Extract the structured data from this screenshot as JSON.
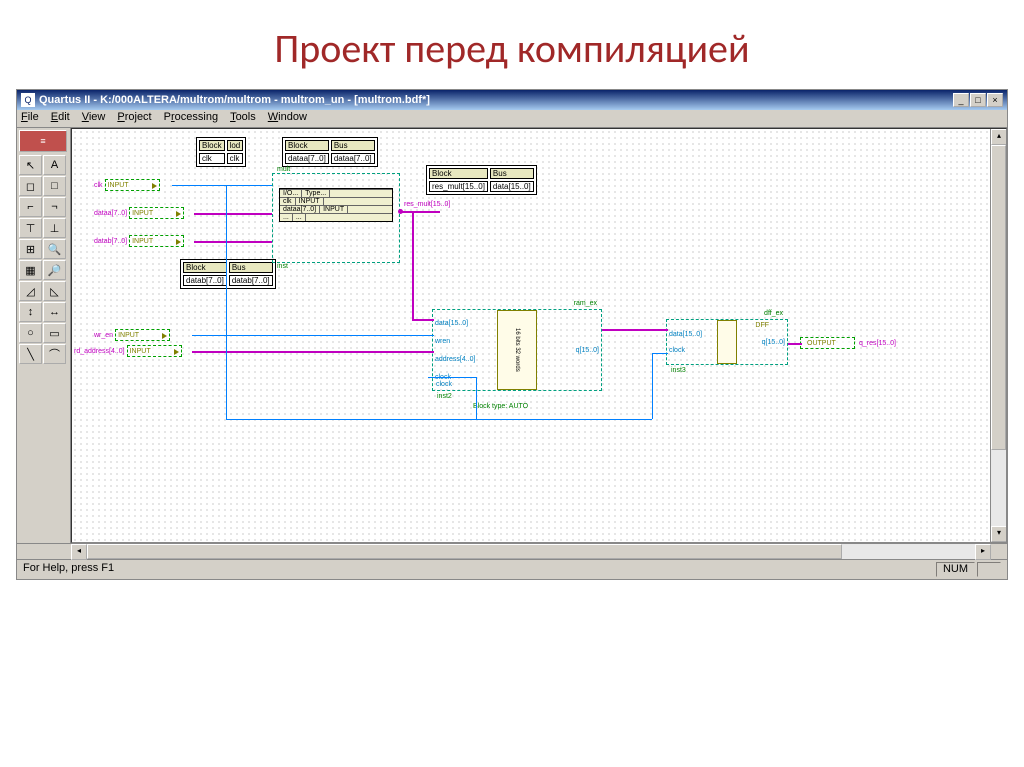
{
  "slide": {
    "title": "Проект перед компиляцией"
  },
  "titlebar": {
    "icon": "Q",
    "text": "Quartus II - K:/000ALTERA/multrom/multrom - multrom_un - [multrom.bdf*]"
  },
  "menubar": [
    "File",
    "Edit",
    "View",
    "Project",
    "Processing",
    "Tools",
    "Window"
  ],
  "tools": {
    "wide": "≡",
    "pairs": [
      [
        "↖",
        "A"
      ],
      [
        "◻",
        "□"
      ],
      [
        "⌐",
        "¬"
      ],
      [
        "⊤",
        "⊥"
      ],
      [
        "⊞",
        "🔍"
      ],
      [
        "▦",
        "🔎"
      ],
      [
        "◿",
        "◺"
      ],
      [
        "↕",
        "↔"
      ],
      [
        "○",
        "▭"
      ],
      [
        "╲",
        "⌒"
      ]
    ]
  },
  "schematic": {
    "tables": {
      "t1": {
        "hdr": [
          "Block",
          "lod"
        ],
        "rows": [
          [
            "clk",
            "clk"
          ]
        ]
      },
      "t2": {
        "hdr": [
          "Block",
          "Bus"
        ],
        "rows": [
          [
            "dataa[7..0]",
            "dataa[7..0]"
          ]
        ]
      },
      "t3": {
        "hdr": [
          "Block",
          "Bus"
        ],
        "rows": [
          [
            "res_mult[15..0]",
            "data[15..0]"
          ]
        ]
      },
      "t4": {
        "hdr": [
          "Block",
          "Bus"
        ],
        "rows": [
          [
            "datab[7..0]",
            "datab[7..0]"
          ]
        ]
      }
    },
    "inputs": {
      "clk": {
        "label": "clk",
        "type": "INPUT"
      },
      "dataa": {
        "label": "dataa[7..0]",
        "type": "INPUT"
      },
      "datab": {
        "label": "datab[7..0]",
        "type": "INPUT"
      },
      "wr_en": {
        "label": "wr_en",
        "type": "INPUT"
      },
      "rd_address": {
        "label": "rd_address[4..0]",
        "type": "INPUT"
      }
    },
    "mult_module": {
      "name": "mult",
      "inst": "inst",
      "hdr": [
        "I/O...",
        "Type..."
      ],
      "rows": [
        [
          "clk",
          "INPUT"
        ],
        [
          "dataa[7..0]",
          "INPUT"
        ],
        [
          "...",
          "..."
        ]
      ]
    },
    "ram": {
      "name": "ram_ex",
      "inst": "inst2",
      "ports_in": [
        "data[15..0]",
        "wren",
        "address[4..0]",
        "clock"
      ],
      "ports_out": [
        "q[15..0]"
      ],
      "mid": "16 bits\n32 words",
      "note": "Block type: AUTO"
    },
    "dff": {
      "name": "dff_ex",
      "inst": "inst3",
      "type": "DFF",
      "ports_in": [
        "data[15..0]",
        "clock"
      ],
      "ports_out": [
        "q[15..0]"
      ]
    },
    "output": {
      "label": "q_res[15..0]",
      "type": "OUTPUT"
    },
    "wire_labels": {
      "res_mult": "res_mult[15..0]"
    }
  },
  "statusbar": {
    "help": "For Help, press F1",
    "num": "NUM"
  },
  "colors": {
    "title": "#a02828",
    "wire_bus": "#c000c0",
    "wire_sig": "#0080ff",
    "module_border": "#00a080",
    "pin_text": "#808000",
    "label": "#c000c0"
  }
}
